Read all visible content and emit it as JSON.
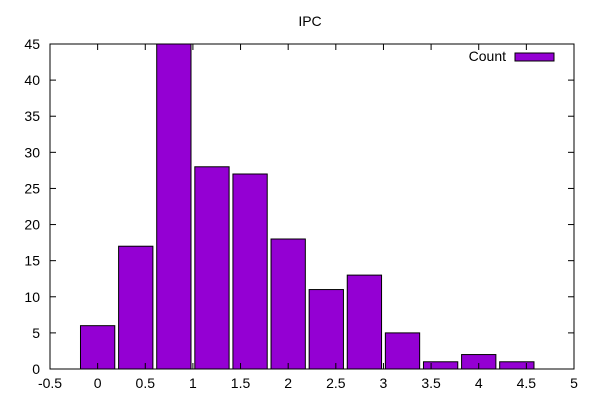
{
  "chart_data": {
    "type": "bar",
    "title": "IPC",
    "x": [
      0,
      0.4,
      0.8,
      1.2,
      1.6,
      2.0,
      2.4,
      2.8,
      3.2,
      3.6,
      4.0,
      4.4
    ],
    "bin_width": 0.36,
    "series": [
      {
        "name": "Count",
        "values": [
          6,
          17,
          45,
          28,
          27,
          18,
          11,
          13,
          5,
          1,
          2,
          1
        ],
        "color": "#9400d3"
      }
    ],
    "xlim": [
      -0.5,
      5
    ],
    "ylim": [
      0,
      45
    ],
    "xticks": [
      "-0.5",
      "0",
      "0.5",
      "1",
      "1.5",
      "2",
      "2.5",
      "3",
      "3.5",
      "4",
      "4.5",
      "5"
    ],
    "yticks": [
      "0",
      "5",
      "10",
      "15",
      "20",
      "25",
      "30",
      "35",
      "40",
      "45"
    ],
    "grid": false,
    "legend_position": "top-right",
    "xlabel": "",
    "ylabel": ""
  }
}
